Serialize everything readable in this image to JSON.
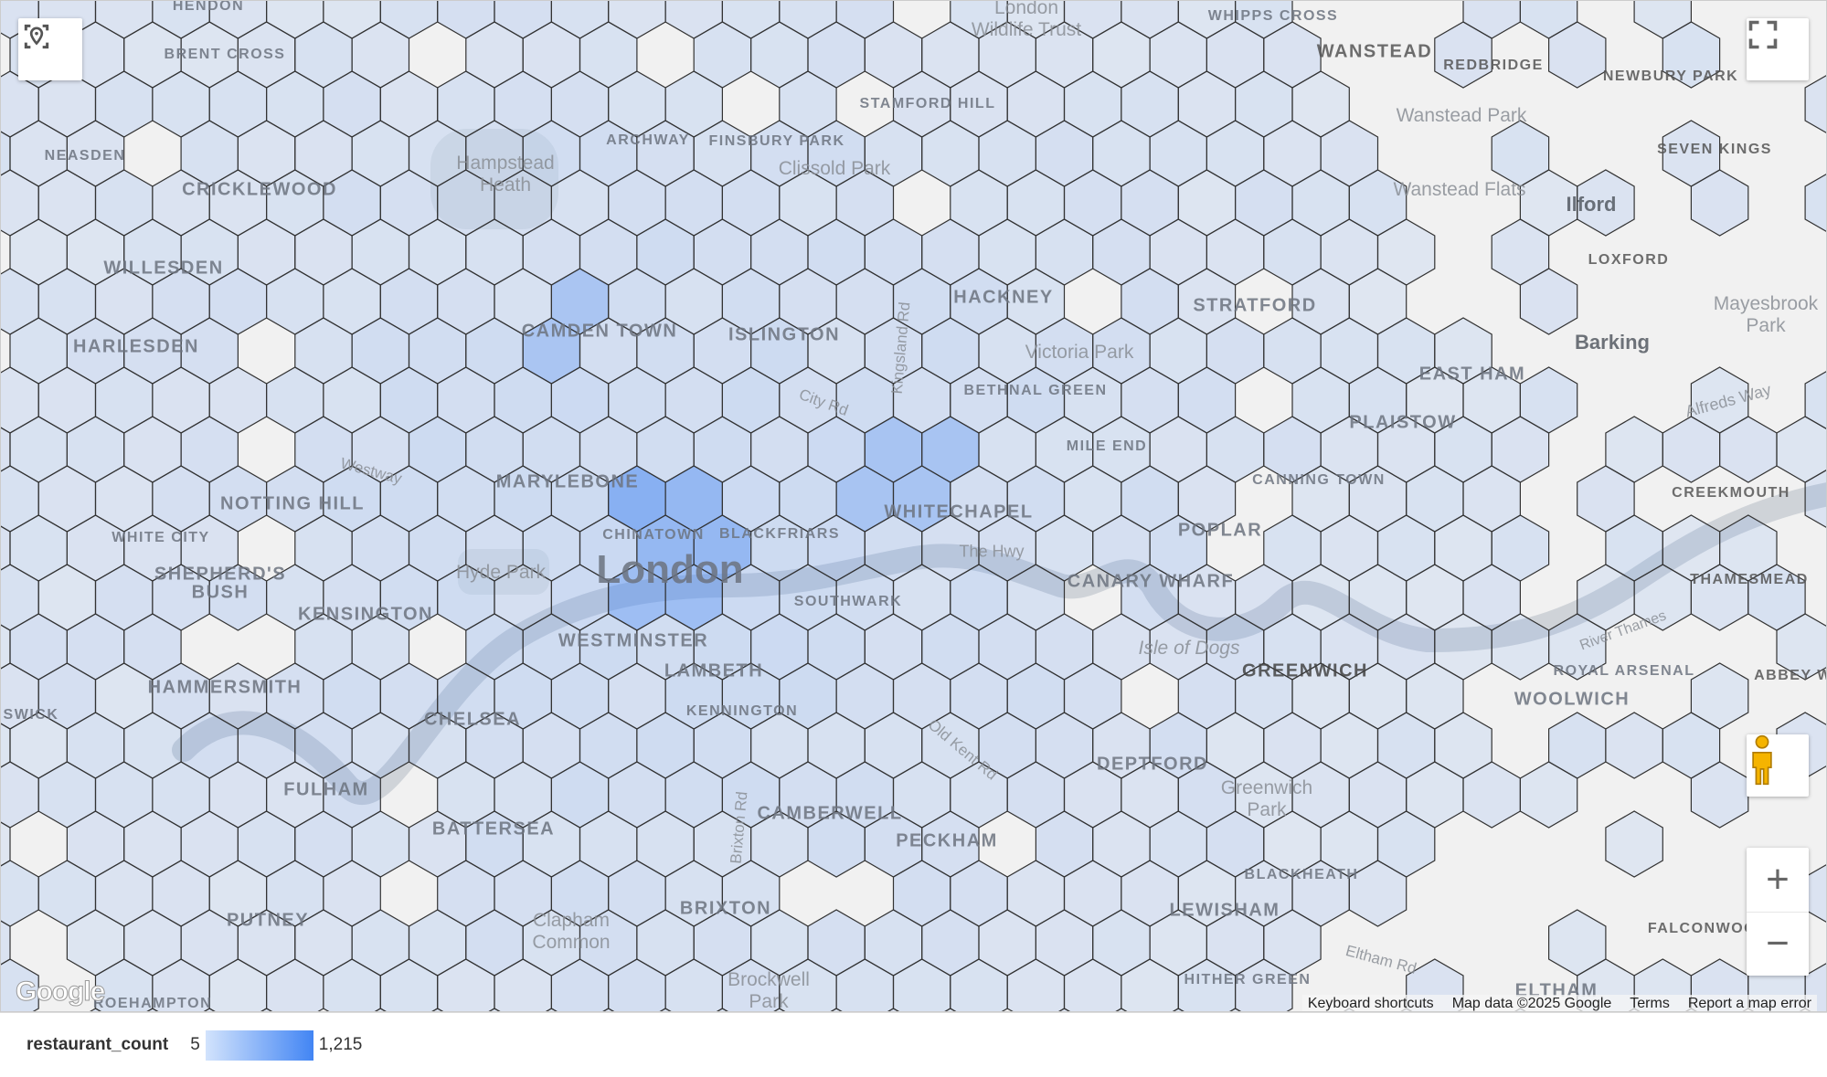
{
  "map": {
    "labels": {
      "hendon": "HENDON",
      "brent_cross": "BRENT CROSS",
      "neasden": "NEASDEN",
      "cricklewood": "CRICKLEWOOD",
      "willesden": "WILLESDEN",
      "harlesden": "HARLESDEN",
      "notting_hill": "NOTTING HILL",
      "white_city": "WHITE CITY",
      "shepherds_bush_1": "SHEPHERD'S",
      "shepherds_bush_2": "BUSH",
      "kensington": "KENSINGTON",
      "hammersmith": "HAMMERSMITH",
      "chelsea": "CHELSEA",
      "fulham": "FULHAM",
      "battersea": "BATTERSEA",
      "putney": "PUTNEY",
      "roehampton": "ROEHAMPTON",
      "chiswick": "ISWICK",
      "hampstead_heath_1": "Hampstead",
      "hampstead_heath_2": "Heath",
      "archway": "ARCHWAY",
      "finsbury_park": "FINSBURY PARK",
      "stamford_hill": "STAMFORD HILL",
      "clissold_park": "Clissold Park",
      "wildlife_trust_1": "London",
      "wildlife_trust_2": "Wildlife Trust",
      "camden_town": "CAMDEN TOWN",
      "islington": "ISLINGTON",
      "hackney": "HACKNEY",
      "victoria_park": "Victoria Park",
      "bethnal_green": "BETHNAL GREEN",
      "mile_end": "MILE END",
      "marylebone": "MARYLEBONE",
      "chinatown": "CHINATOWN",
      "blackfriars": "BLACKFRIARS",
      "whitechapel": "WHITECHAPEL",
      "london": "London",
      "hyde_park": "Hyde Park",
      "southwark": "SOUTHWARK",
      "the_hwy": "The Hwy",
      "westminster": "WESTMINSTER",
      "lambeth": "LAMBETH",
      "kennington": "KENNINGTON",
      "camberwell": "CAMBERWELL",
      "peckham": "PECKHAM",
      "brixton": "BRIXTON",
      "clapham_common_1": "Clapham",
      "clapham_common_2": "Common",
      "brockwell_park_1": "Brockwell",
      "brockwell_park_2": "Park",
      "stratford": "STRATFORD",
      "canning_town": "CANNING TOWN",
      "poplar": "POPLAR",
      "canary_wharf": "CANARY WHARF",
      "isle_of_dogs": "Isle of Dogs",
      "greenwich": "GREENWICH",
      "deptford": "DEPTFORD",
      "greenwich_park_1": "Greenwich",
      "greenwich_park_2": "Park",
      "lewisham": "LEWISHAM",
      "blackheath": "BLACKHEATH",
      "hither_green": "HITHER GREEN",
      "eltham": "ELTHAM",
      "whipps_cross": "WHIPPS CROSS",
      "wanstead": "WANSTEAD",
      "redbridge": "REDBRIDGE",
      "newbury_park": "NEWBURY PARK",
      "wanstead_park": "Wanstead Park",
      "seven_kings": "SEVEN KINGS",
      "wanstead_flats": "Wanstead Flats",
      "ilford": "Ilford",
      "loxford": "LOXFORD",
      "mayesbrook_park_1": "Mayesbrook",
      "mayesbrook_park_2": "Park",
      "barking": "Barking",
      "east_ham": "EAST HAM",
      "plaistow": "PLAISTOW",
      "creekmouth": "CREEKMOUTH",
      "thamesmead": "THAMESMEAD",
      "royal_arsenal": "ROYAL ARSENAL",
      "woolwich": "WOOLWICH",
      "abbey_wood": "ABBEY W",
      "falconwood": "FALCONWOOD",
      "city_rd": "City Rd",
      "kingsland_rd": "Kingsland Rd",
      "old_kent_rd": "Old Kent Rd",
      "brixton_rd": "Brixton Rd",
      "alfreds_way": "Alfreds Way",
      "westway": "Westway",
      "eltham_rd": "Eltham Rd",
      "river_thames": "River Thames"
    },
    "controls": {
      "locate_icon": "my-location-icon",
      "fullscreen_icon": "fullscreen-icon",
      "pegman_icon": "pegman-icon",
      "zoom_in": "+",
      "zoom_out": "−"
    },
    "attribution": {
      "logo": "Google",
      "keyboard_shortcuts": "Keyboard shortcuts",
      "map_data": "Map data ©2025 Google",
      "terms": "Terms",
      "report": "Report a map error"
    },
    "hex_color": "#4285f4",
    "hex_stroke": "#333333"
  },
  "legend": {
    "field": "restaurant_count",
    "min_label": "5",
    "max_label": "1,215",
    "min": 5,
    "max": 1215,
    "color_low": "#d2e3fc",
    "color_high": "#4285f4"
  }
}
